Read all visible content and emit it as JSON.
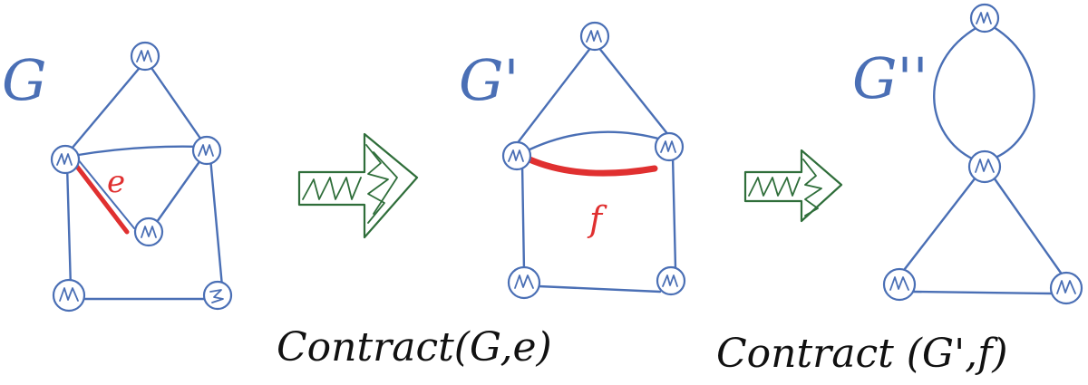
{
  "colors": {
    "graph_blue": "#4a6fb5",
    "highlight_red": "#e03030",
    "arrow_green": "#2f6e3a",
    "caption_black": "#111111"
  },
  "graphs": [
    {
      "id": "G",
      "label": "G",
      "highlighted_edge_label": "e",
      "nodes": [
        "top",
        "mid-left",
        "mid-right",
        "inner",
        "bottom-left",
        "bottom-right"
      ],
      "edges": [
        [
          "top",
          "mid-left"
        ],
        [
          "top",
          "mid-right"
        ],
        [
          "mid-left",
          "mid-right"
        ],
        [
          "mid-left",
          "inner"
        ],
        [
          "mid-right",
          "inner"
        ],
        [
          "mid-left",
          "bottom-left"
        ],
        [
          "mid-right",
          "bottom-right"
        ],
        [
          "bottom-left",
          "bottom-right"
        ]
      ],
      "highlighted_edge": [
        "mid-left",
        "inner"
      ]
    },
    {
      "id": "G-prime",
      "label": "G'",
      "highlighted_edge_label": "f",
      "nodes": [
        "top",
        "mid-left",
        "mid-right",
        "bottom-left",
        "bottom-right"
      ],
      "edges": [
        [
          "top",
          "mid-left"
        ],
        [
          "top",
          "mid-right"
        ],
        [
          "mid-left",
          "mid-right"
        ],
        [
          "mid-left",
          "mid-right"
        ],
        [
          "mid-left",
          "bottom-left"
        ],
        [
          "mid-right",
          "bottom-right"
        ],
        [
          "bottom-left",
          "bottom-right"
        ]
      ],
      "highlighted_edge": [
        "mid-left",
        "mid-right"
      ]
    },
    {
      "id": "G-double-prime",
      "label": "G''",
      "nodes": [
        "top",
        "center",
        "bottom-left",
        "bottom-right"
      ],
      "edges": [
        [
          "top",
          "center"
        ],
        [
          "top",
          "center"
        ],
        [
          "center",
          "bottom-left"
        ],
        [
          "center",
          "bottom-right"
        ],
        [
          "bottom-left",
          "bottom-right"
        ]
      ]
    }
  ],
  "captions": {
    "first": "Contract(G,e)",
    "second": "Contract (G',f)"
  }
}
